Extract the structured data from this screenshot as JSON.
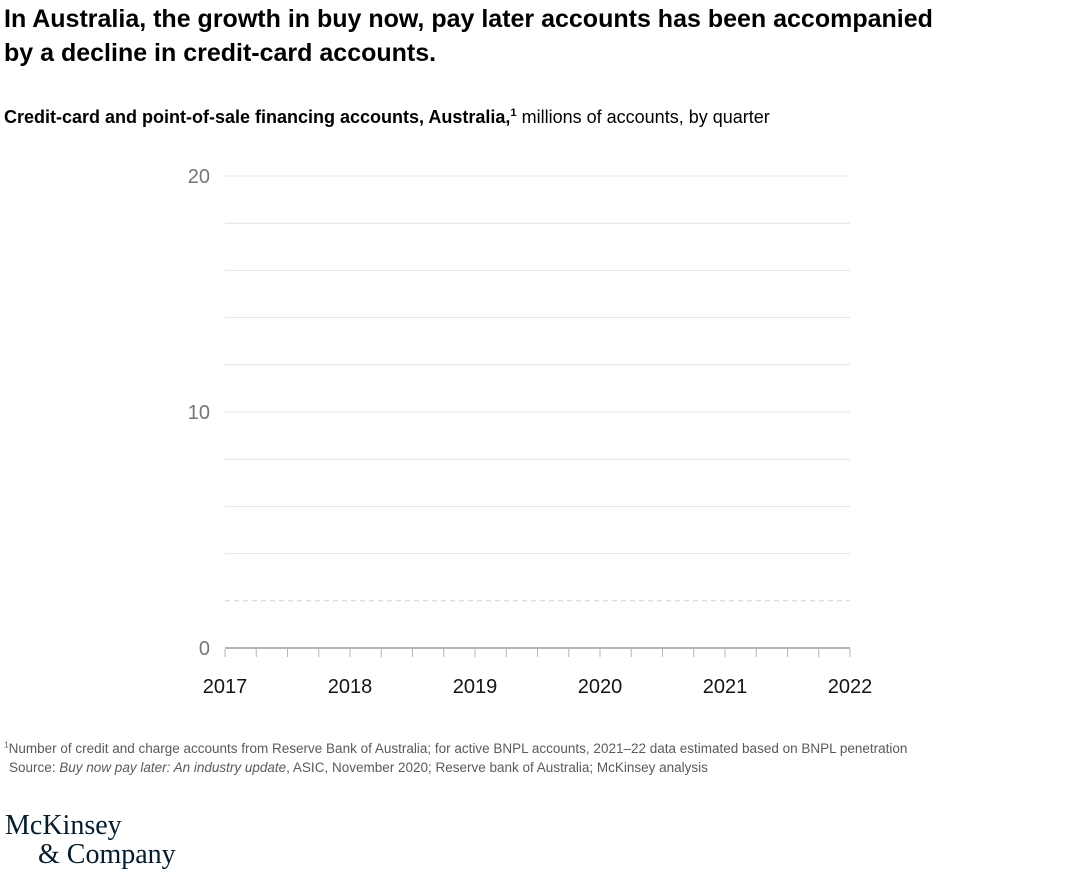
{
  "header": {
    "title": [
      "In Australia, the growth in buy now, pay later accounts has been accompanied",
      "by a decline in credit-card accounts."
    ],
    "subtitle_bold": "Credit-card and point-of-sale financing accounts, Australia,",
    "subtitle_sup": "1",
    "subtitle_rest": " millions of accounts, by quarter"
  },
  "chart_data": {
    "type": "line",
    "title": "Credit-card and point-of-sale financing accounts, Australia",
    "ylabel": "millions of accounts, by quarter",
    "x_year_labels": [
      "2017",
      "2018",
      "2019",
      "2020",
      "2021",
      "2022"
    ],
    "minor_ticks_per_year": 4,
    "ylim": [
      0,
      20
    ],
    "y_axis_labels": [
      0,
      10,
      20
    ],
    "gridline_step": 2,
    "dashed_gridline_value": 2,
    "grid": true,
    "legend": false,
    "series": []
  },
  "footnote": {
    "sup": "1",
    "line1": "Number of credit and charge accounts from Reserve Bank of Australia; for active BNPL accounts, 2021–22 data estimated based on BNPL penetration",
    "source_prefix": "Source: ",
    "source_italic": "Buy now pay later: An industry update",
    "source_suffix": ", ASIC, November 2020; Reserve bank of Australia; McKinsey analysis"
  },
  "logo": {
    "line1": "McKinsey",
    "line2": "& Company"
  },
  "colors": {
    "background": "#ffffff",
    "title_text": "#000000",
    "gridline": "#e4e4e4",
    "dashed_line": "#d4d4d4",
    "axis_line": "#b5b5b5",
    "y_axis_label": "#767676",
    "x_axis_label": "#141414",
    "footnote_text": "#5a5a5a",
    "logo_text": "#051c2c"
  }
}
